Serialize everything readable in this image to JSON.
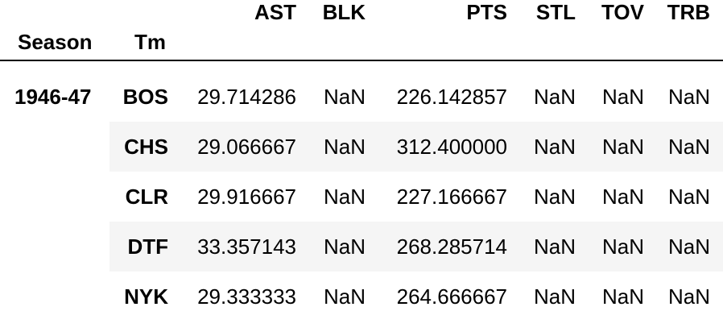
{
  "table": {
    "columns": [
      "AST",
      "BLK",
      "PTS",
      "STL",
      "TOV",
      "TRB"
    ],
    "index_names": [
      "Season",
      "Tm"
    ],
    "season": "1946-47",
    "rows": [
      {
        "tm": "BOS",
        "values": [
          "29.714286",
          "NaN",
          "226.142857",
          "NaN",
          "NaN",
          "NaN"
        ]
      },
      {
        "tm": "CHS",
        "values": [
          "29.066667",
          "NaN",
          "312.400000",
          "NaN",
          "NaN",
          "NaN"
        ]
      },
      {
        "tm": "CLR",
        "values": [
          "29.916667",
          "NaN",
          "227.166667",
          "NaN",
          "NaN",
          "NaN"
        ]
      },
      {
        "tm": "DTF",
        "values": [
          "33.357143",
          "NaN",
          "268.285714",
          "NaN",
          "NaN",
          "NaN"
        ]
      },
      {
        "tm": "NYK",
        "values": [
          "29.333333",
          "NaN",
          "264.666667",
          "NaN",
          "NaN",
          "NaN"
        ]
      }
    ]
  }
}
